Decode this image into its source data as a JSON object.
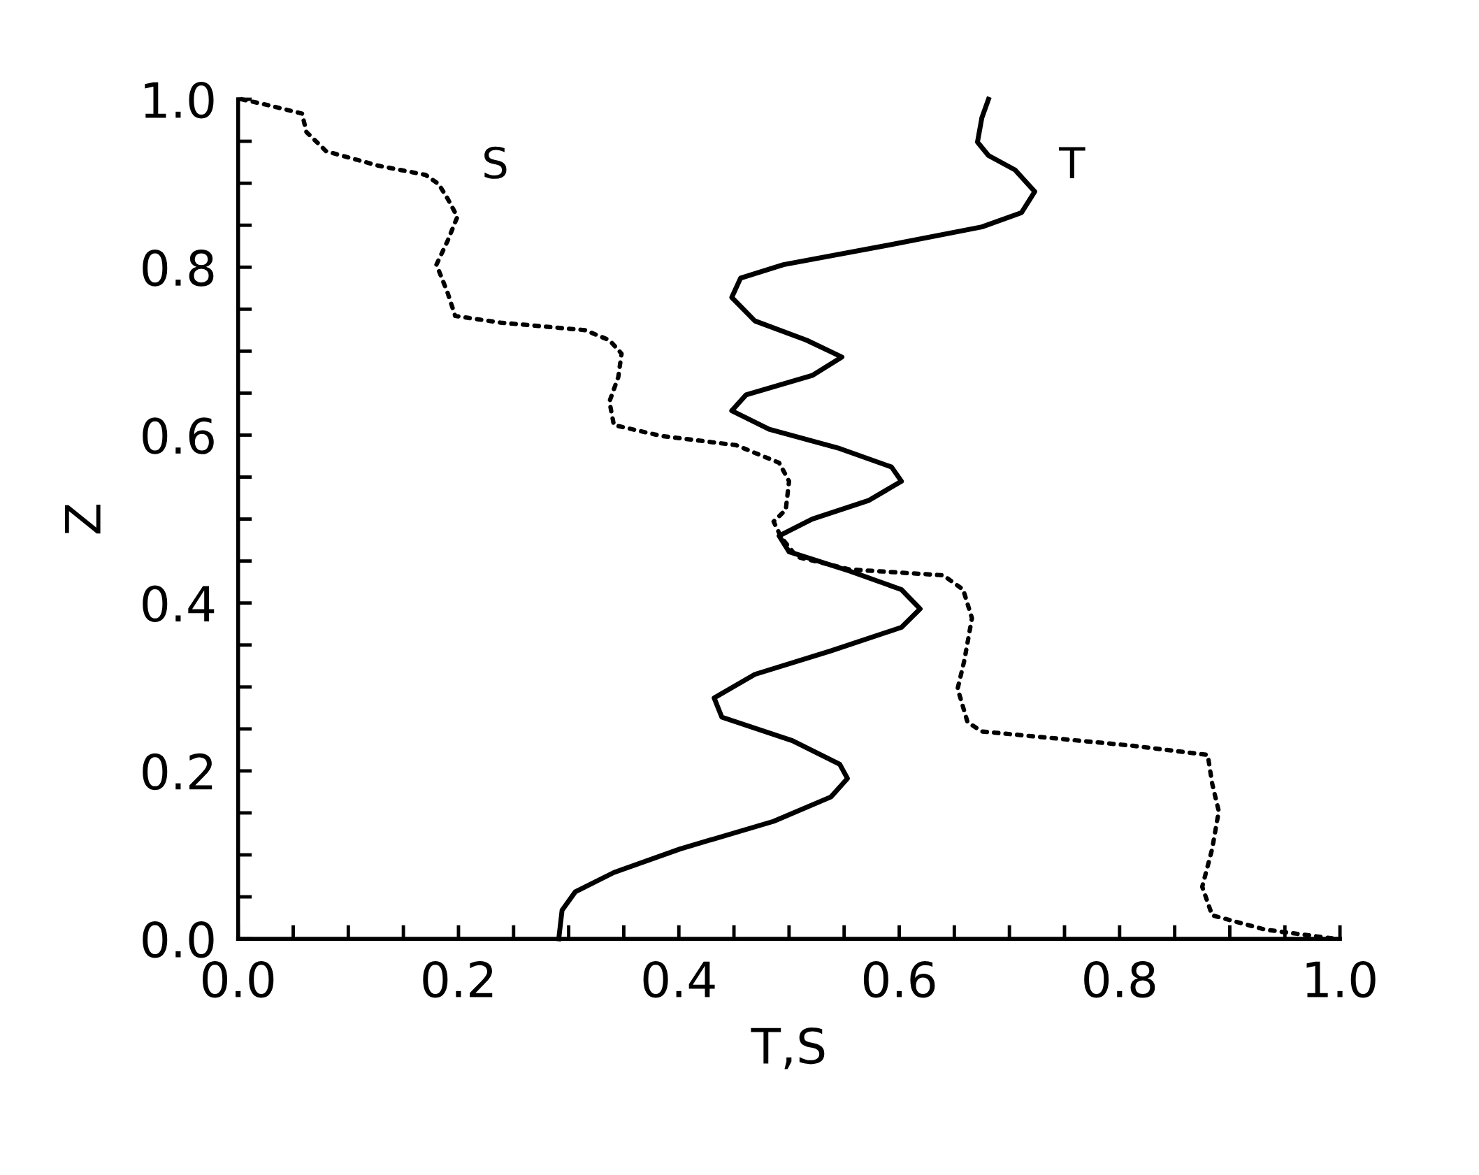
{
  "chart_data": {
    "type": "line",
    "xlabel": "T,S",
    "ylabel": "Z",
    "xlim": [
      0,
      1.0
    ],
    "ylim": [
      0,
      1.0
    ],
    "xticks": [
      {
        "value": 0,
        "label": "0.0"
      },
      {
        "value": 0.2,
        "label": "0.2"
      },
      {
        "value": 0.4,
        "label": "0.4"
      },
      {
        "value": 0.6,
        "label": "0.6"
      },
      {
        "value": 0.8,
        "label": "0.8"
      },
      {
        "value": 1.0,
        "label": "1.0"
      }
    ],
    "yticks": [
      {
        "value": 0,
        "label": "0.0"
      },
      {
        "value": 0.2,
        "label": "0.2"
      },
      {
        "value": 0.4,
        "label": "0.4"
      },
      {
        "value": 0.6,
        "label": "0.6"
      },
      {
        "value": 0.8,
        "label": "0.8"
      },
      {
        "value": 1.0,
        "label": "1.0"
      }
    ],
    "grid": false,
    "legend": false,
    "marker": "none",
    "series": [
      {
        "name": "S",
        "color": "#000000",
        "line_style": "dotted",
        "x": [
          0.003,
          0.024,
          0.058,
          0.062,
          0.08,
          0.127,
          0.17,
          0.182,
          0.19,
          0.199,
          0.19,
          0.18,
          0.19,
          0.197,
          0.238,
          0.315,
          0.337,
          0.348,
          0.345,
          0.337,
          0.341,
          0.384,
          0.452,
          0.491,
          0.5,
          0.497,
          0.486,
          0.493,
          0.507,
          0.555,
          0.64,
          0.658,
          0.666,
          0.659,
          0.653,
          0.662,
          0.675,
          0.812,
          0.88,
          0.884,
          0.89,
          0.884,
          0.875,
          0.884,
          0.932,
          0.996
        ],
        "values": [
          1.0,
          0.994,
          0.983,
          0.961,
          0.938,
          0.921,
          0.91,
          0.899,
          0.882,
          0.86,
          0.831,
          0.803,
          0.77,
          0.742,
          0.734,
          0.725,
          0.713,
          0.697,
          0.669,
          0.64,
          0.612,
          0.599,
          0.588,
          0.567,
          0.545,
          0.511,
          0.497,
          0.478,
          0.455,
          0.44,
          0.433,
          0.416,
          0.382,
          0.331,
          0.298,
          0.258,
          0.247,
          0.23,
          0.219,
          0.185,
          0.152,
          0.107,
          0.062,
          0.028,
          0.011,
          0.0
        ]
      },
      {
        "name": "T",
        "color": "#000000",
        "line_style": "solid",
        "x": [
          0.681,
          0.675,
          0.671,
          0.681,
          0.705,
          0.723,
          0.711,
          0.675,
          0.589,
          0.495,
          0.456,
          0.448,
          0.469,
          0.516,
          0.548,
          0.521,
          0.461,
          0.448,
          0.482,
          0.546,
          0.593,
          0.602,
          0.572,
          0.521,
          0.491,
          0.5,
          0.555,
          0.602,
          0.619,
          0.602,
          0.538,
          0.469,
          0.432,
          0.439,
          0.503,
          0.546,
          0.553,
          0.538,
          0.486,
          0.401,
          0.341,
          0.306,
          0.294,
          0.291
        ],
        "values": [
          1.0,
          0.978,
          0.949,
          0.933,
          0.916,
          0.89,
          0.865,
          0.848,
          0.826,
          0.803,
          0.787,
          0.764,
          0.736,
          0.713,
          0.693,
          0.671,
          0.648,
          0.629,
          0.607,
          0.584,
          0.562,
          0.545,
          0.522,
          0.5,
          0.48,
          0.461,
          0.438,
          0.416,
          0.393,
          0.371,
          0.343,
          0.315,
          0.287,
          0.264,
          0.236,
          0.208,
          0.191,
          0.169,
          0.14,
          0.107,
          0.079,
          0.056,
          0.034,
          0.0
        ]
      }
    ]
  }
}
